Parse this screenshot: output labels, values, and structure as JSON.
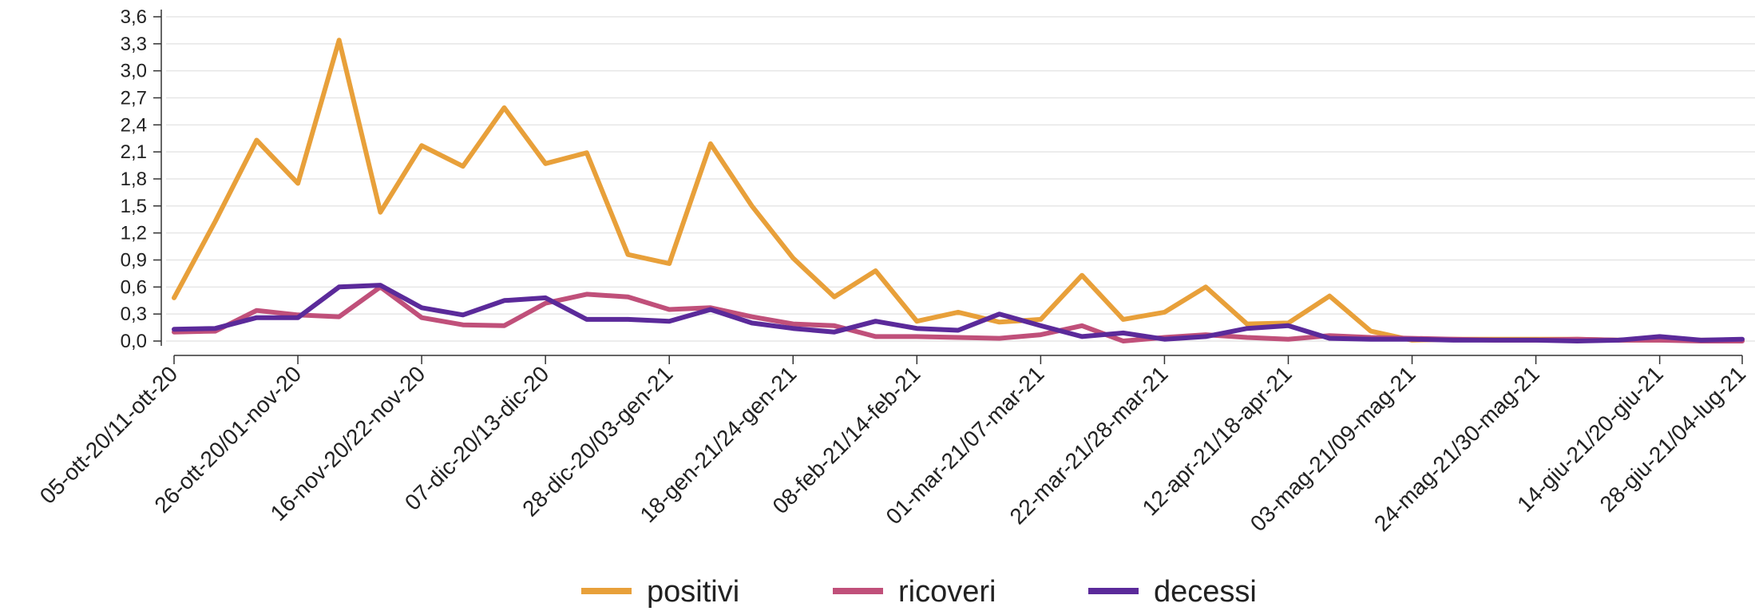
{
  "chart_data": {
    "type": "line",
    "title": "",
    "xlabel": "",
    "ylabel": "",
    "ylim": [
      0,
      3.6
    ],
    "yticks": [
      "0,0",
      "0,3",
      "0,6",
      "0,9",
      "1,2",
      "1,5",
      "1,8",
      "2,1",
      "2,4",
      "2,7",
      "3,0",
      "3,3",
      "3,6"
    ],
    "grid": "horizontal",
    "legend_position": "bottom",
    "colors": {
      "positivi": "#E8A03A",
      "ricoveri": "#C0507A",
      "decessi": "#5B2A9A"
    },
    "x_tick_labels": [
      "05-ott-20/11-ott-20",
      "26-ott-20/01-nov-20",
      "16-nov-20/22-nov-20",
      "07-dic-20/13-dic-20",
      "28-dic-20/03-gen-21",
      "18-gen-21/24-gen-21",
      "08-feb-21/14-feb-21",
      "01-mar-21/07-mar-21",
      "22-mar-21/28-mar-21",
      "12-apr-21/18-apr-21",
      "03-mag-21/09-mag-21",
      "24-mag-21/30-mag-21",
      "14-giu-21/20-giu-21",
      "28-giu-21/04-lug-21"
    ],
    "x_tick_indices": [
      0,
      3,
      6,
      9,
      12,
      15,
      18,
      21,
      24,
      27,
      30,
      33,
      36,
      38
    ],
    "series": [
      {
        "name": "positivi",
        "values": [
          0.48,
          1.33,
          2.23,
          1.75,
          3.34,
          1.43,
          2.17,
          1.94,
          2.59,
          1.97,
          2.09,
          0.96,
          0.86,
          2.19,
          1.5,
          0.92,
          0.49,
          0.78,
          0.22,
          0.32,
          0.21,
          0.24,
          0.73,
          0.24,
          0.32,
          0.6,
          0.19,
          0.2,
          0.5,
          0.11,
          0.01,
          0.02,
          0.02,
          0.02,
          0.02,
          0.01,
          0.01,
          0.01,
          0.01
        ]
      },
      {
        "name": "ricoveri",
        "values": [
          0.1,
          0.11,
          0.34,
          0.29,
          0.27,
          0.6,
          0.26,
          0.18,
          0.17,
          0.42,
          0.52,
          0.49,
          0.35,
          0.37,
          0.27,
          0.19,
          0.17,
          0.05,
          0.05,
          0.04,
          0.03,
          0.07,
          0.17,
          0.0,
          0.04,
          0.07,
          0.04,
          0.02,
          0.06,
          0.04,
          0.03,
          0.02,
          0.01,
          0.01,
          0.02,
          0.01,
          0.01,
          0.0,
          0.0
        ]
      },
      {
        "name": "decessi",
        "values": [
          0.13,
          0.14,
          0.26,
          0.26,
          0.6,
          0.62,
          0.37,
          0.29,
          0.45,
          0.48,
          0.24,
          0.24,
          0.22,
          0.35,
          0.2,
          0.14,
          0.1,
          0.22,
          0.14,
          0.12,
          0.3,
          0.17,
          0.05,
          0.09,
          0.02,
          0.05,
          0.14,
          0.17,
          0.03,
          0.02,
          0.02,
          0.01,
          0.01,
          0.01,
          0.0,
          0.01,
          0.05,
          0.01,
          0.02
        ]
      }
    ]
  }
}
